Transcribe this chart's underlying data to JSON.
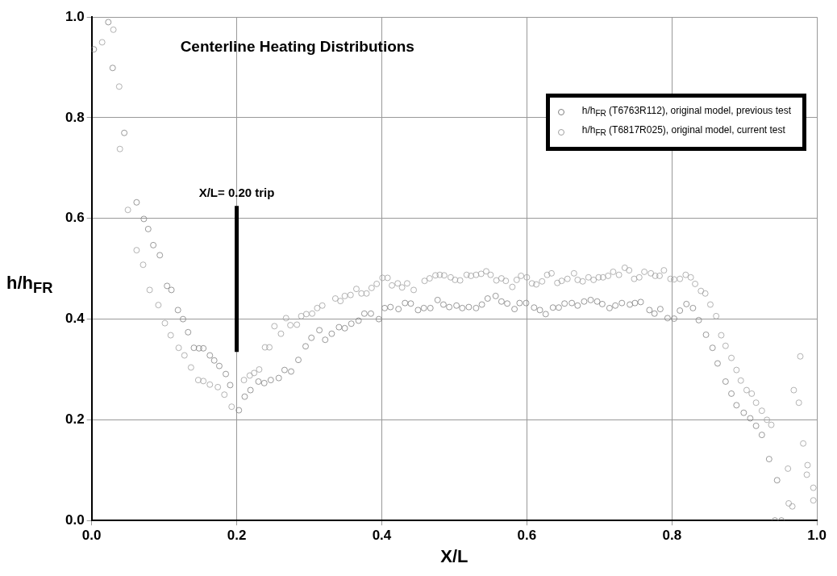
{
  "chart_data": {
    "type": "scatter",
    "title": "Centerline Heating Distributions",
    "xlabel": "X/L",
    "ylabel": "h/h$_{FR}$",
    "xlim": [
      0,
      1
    ],
    "ylim": [
      0,
      1
    ],
    "xticks": [
      {
        "value": 0,
        "label": "0.0"
      },
      {
        "value": 0.2,
        "label": "0.2"
      },
      {
        "value": 0.4,
        "label": "0.4"
      },
      {
        "value": 0.6,
        "label": "0.6"
      },
      {
        "value": 0.8,
        "label": "0.8"
      },
      {
        "value": 1,
        "label": "1.0"
      }
    ],
    "yticks": [
      {
        "value": 0,
        "label": "0.0"
      },
      {
        "value": 0.2,
        "label": "0.2"
      },
      {
        "value": 0.4,
        "label": "0.4"
      },
      {
        "value": 0.6,
        "label": "0.6"
      },
      {
        "value": 0.8,
        "label": "0.8"
      },
      {
        "value": 1,
        "label": "1.0"
      }
    ],
    "grid": true,
    "legend": "top right",
    "marker": "circle",
    "annotations": [
      {
        "text": "X/L= 0.20 trip",
        "x": 0.2,
        "y": 0.625
      }
    ],
    "series": [
      {
        "name": "h/h$_{FR}$ (T6763R112), original model, previous test",
        "color": "#808080",
        "x": [
          0.003,
          0.023,
          0.029,
          0.045,
          0.062,
          0.072,
          0.078,
          0.085,
          0.094,
          0.104,
          0.11,
          0.119,
          0.126,
          0.133,
          0.141,
          0.148,
          0.154,
          0.163,
          0.169,
          0.176,
          0.185,
          0.191,
          0.203,
          0.211,
          0.219,
          0.23,
          0.238,
          0.247,
          0.258,
          0.266,
          0.275,
          0.285,
          0.295,
          0.303,
          0.314,
          0.322,
          0.331,
          0.341,
          0.349,
          0.358,
          0.368,
          0.376,
          0.385,
          0.396,
          0.404,
          0.412,
          0.423,
          0.432,
          0.44,
          0.45,
          0.458,
          0.467,
          0.477,
          0.485,
          0.493,
          0.503,
          0.511,
          0.52,
          0.53,
          0.538,
          0.546,
          0.557,
          0.565,
          0.573,
          0.583,
          0.59,
          0.599,
          0.61,
          0.618,
          0.626,
          0.636,
          0.644,
          0.652,
          0.662,
          0.67,
          0.679,
          0.688,
          0.697,
          0.704,
          0.714,
          0.722,
          0.731,
          0.742,
          0.749,
          0.757,
          0.769,
          0.776,
          0.784,
          0.794,
          0.803,
          0.811,
          0.82,
          0.829,
          0.837,
          0.847,
          0.856,
          0.863,
          0.874,
          0.882,
          0.889,
          0.899,
          0.908,
          0.916,
          0.924,
          0.934,
          0.945,
          0.942,
          0.951
        ],
        "values": [
          0.936,
          0.99,
          0.899,
          0.77,
          0.632,
          0.599,
          0.579,
          0.547,
          0.527,
          0.466,
          0.458,
          0.418,
          0.4,
          0.374,
          0.343,
          0.342,
          0.342,
          0.328,
          0.318,
          0.307,
          0.291,
          0.269,
          0.219,
          0.246,
          0.259,
          0.276,
          0.273,
          0.279,
          0.283,
          0.299,
          0.296,
          0.319,
          0.346,
          0.363,
          0.378,
          0.359,
          0.371,
          0.384,
          0.382,
          0.391,
          0.397,
          0.411,
          0.411,
          0.4,
          0.422,
          0.424,
          0.42,
          0.432,
          0.431,
          0.418,
          0.422,
          0.422,
          0.438,
          0.429,
          0.424,
          0.427,
          0.422,
          0.424,
          0.422,
          0.429,
          0.441,
          0.446,
          0.435,
          0.431,
          0.42,
          0.432,
          0.432,
          0.423,
          0.418,
          0.41,
          0.423,
          0.423,
          0.431,
          0.432,
          0.427,
          0.435,
          0.438,
          0.435,
          0.43,
          0.422,
          0.427,
          0.432,
          0.429,
          0.432,
          0.434,
          0.418,
          0.411,
          0.42,
          0.402,
          0.401,
          0.417,
          0.43,
          0.422,
          0.398,
          0.369,
          0.343,
          0.312,
          0.276,
          0.252,
          0.229,
          0.214,
          0.203,
          0.188,
          0.17,
          0.122,
          0.08,
          0,
          0
        ]
      },
      {
        "name": "h/h$_{FR}$ (T6817R025), original model, current test",
        "color": "#a0a0a0",
        "x": [
          0.0145,
          0.03,
          0.038,
          0.039,
          0.05,
          0.062,
          0.071,
          0.08,
          0.092,
          0.101,
          0.109,
          0.12,
          0.128,
          0.137,
          0.147,
          0.154,
          0.163,
          0.174,
          0.183,
          0.193,
          0.21,
          0.218,
          0.224,
          0.231,
          0.239,
          0.245,
          0.252,
          0.261,
          0.268,
          0.274,
          0.283,
          0.289,
          0.296,
          0.304,
          0.311,
          0.318,
          0.336,
          0.343,
          0.349,
          0.357,
          0.365,
          0.372,
          0.379,
          0.386,
          0.393,
          0.401,
          0.408,
          0.414,
          0.422,
          0.428,
          0.435,
          0.444,
          0.459,
          0.466,
          0.474,
          0.48,
          0.486,
          0.495,
          0.501,
          0.508,
          0.517,
          0.523,
          0.53,
          0.537,
          0.544,
          0.55,
          0.558,
          0.565,
          0.571,
          0.58,
          0.586,
          0.592,
          0.6,
          0.607,
          0.613,
          0.621,
          0.628,
          0.634,
          0.642,
          0.648,
          0.656,
          0.665,
          0.67,
          0.677,
          0.685,
          0.692,
          0.699,
          0.705,
          0.712,
          0.719,
          0.727,
          0.735,
          0.741,
          0.748,
          0.755,
          0.762,
          0.771,
          0.777,
          0.783,
          0.789,
          0.798,
          0.803,
          0.811,
          0.819,
          0.826,
          0.832,
          0.84,
          0.846,
          0.853,
          0.861,
          0.868,
          0.874,
          0.882,
          0.889,
          0.895,
          0.903,
          0.91,
          0.916,
          0.924,
          0.931,
          0.937,
          0.96,
          0.961,
          0.966,
          0.968,
          0.975,
          0.977,
          0.981,
          0.986,
          0.987,
          0.995,
          0.995
        ],
        "values": [
          0.95,
          0.975,
          0.862,
          0.738,
          0.617,
          0.537,
          0.508,
          0.458,
          0.428,
          0.392,
          0.368,
          0.343,
          0.328,
          0.304,
          0.279,
          0.277,
          0.27,
          0.265,
          0.25,
          0.226,
          0.279,
          0.288,
          0.293,
          0.3,
          0.344,
          0.344,
          0.386,
          0.371,
          0.402,
          0.388,
          0.389,
          0.406,
          0.41,
          0.411,
          0.422,
          0.427,
          0.441,
          0.436,
          0.446,
          0.448,
          0.46,
          0.451,
          0.451,
          0.462,
          0.47,
          0.482,
          0.482,
          0.467,
          0.471,
          0.463,
          0.471,
          0.458,
          0.476,
          0.481,
          0.487,
          0.488,
          0.487,
          0.483,
          0.478,
          0.477,
          0.488,
          0.486,
          0.488,
          0.49,
          0.495,
          0.488,
          0.477,
          0.481,
          0.476,
          0.464,
          0.478,
          0.486,
          0.483,
          0.471,
          0.469,
          0.475,
          0.488,
          0.491,
          0.472,
          0.476,
          0.48,
          0.491,
          0.478,
          0.475,
          0.483,
          0.478,
          0.483,
          0.483,
          0.486,
          0.494,
          0.488,
          0.502,
          0.497,
          0.48,
          0.483,
          0.494,
          0.491,
          0.486,
          0.486,
          0.497,
          0.48,
          0.479,
          0.48,
          0.488,
          0.483,
          0.47,
          0.456,
          0.451,
          0.429,
          0.406,
          0.368,
          0.347,
          0.323,
          0.299,
          0.278,
          0.259,
          0.252,
          0.234,
          0.218,
          0.2,
          0.19,
          0.103,
          0.034,
          0.028,
          0.259,
          0.234,
          0.326,
          0.153,
          0.091,
          0.11,
          0.065,
          0.04
        ]
      },
      {
        "type": "line",
        "color": "#000000",
        "marker": "none",
        "x": [
          0.2,
          0.2
        ],
        "values": [
          0.335,
          0.625
        ]
      }
    ]
  }
}
